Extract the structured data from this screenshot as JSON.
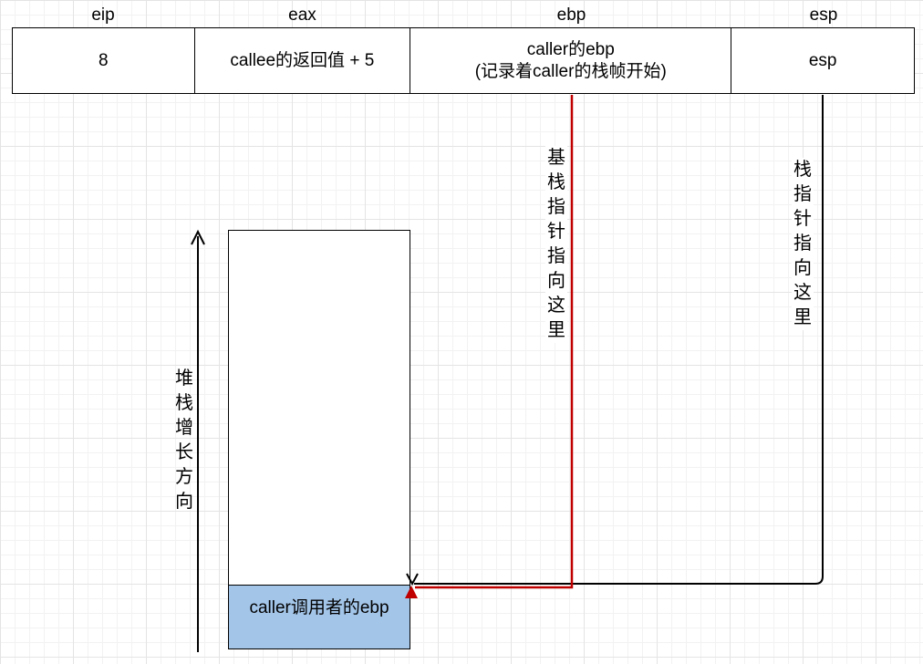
{
  "registers": [
    {
      "name": "eip",
      "value_lines": [
        "8"
      ]
    },
    {
      "name": "eax",
      "value_lines": [
        "callee的返回值 + 5"
      ]
    },
    {
      "name": "ebp",
      "value_lines": [
        "caller的ebp",
        "(记录着caller的栈帧开始)"
      ]
    },
    {
      "name": "esp",
      "value_lines": [
        "esp"
      ]
    }
  ],
  "ebp_pointer_label": "基栈指针指向这里",
  "esp_pointer_label": "栈指针指向这里",
  "stack_growth_label": "堆栈增长方向",
  "stack_cell_label": "caller调用者的ebp",
  "colors": {
    "ebp_line": "#c00000",
    "esp_line": "#000000",
    "stack_cell_fill": "#a3c5e8"
  }
}
